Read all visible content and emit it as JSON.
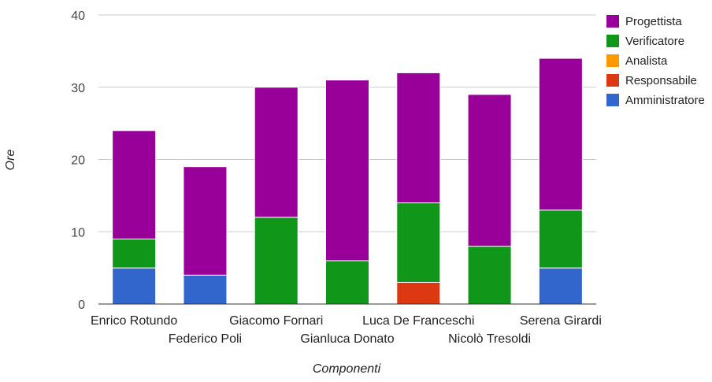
{
  "chart_data": {
    "type": "bar",
    "stacked": true,
    "title": "",
    "xlabel": "Componenti",
    "ylabel": "Ore",
    "ylim": [
      0,
      40
    ],
    "yticks": [
      0,
      10,
      20,
      30,
      40
    ],
    "grid": true,
    "legend_position": "right",
    "categories": [
      "Enrico Rotundo",
      "Federico Poli",
      "Giacomo Fornari",
      "Gianluca Donato",
      "Luca De Franceschi",
      "Nicolò Tresoldi",
      "Serena Girardi"
    ],
    "series": [
      {
        "name": "Amministratore",
        "color": "#3366cc",
        "values": [
          5,
          4,
          0,
          0,
          0,
          0,
          5
        ]
      },
      {
        "name": "Responsabile",
        "color": "#dc3912",
        "values": [
          0,
          0,
          0,
          0,
          3,
          0,
          0
        ]
      },
      {
        "name": "Analista",
        "color": "#ff9900",
        "values": [
          0,
          0,
          0,
          0,
          0,
          0,
          0
        ]
      },
      {
        "name": "Verificatore",
        "color": "#109618",
        "values": [
          4,
          0,
          12,
          6,
          11,
          8,
          8
        ]
      },
      {
        "name": "Progettista",
        "color": "#990099",
        "values": [
          15,
          15,
          18,
          25,
          18,
          21,
          21
        ]
      }
    ],
    "legend_order": [
      "Progettista",
      "Verificatore",
      "Analista",
      "Responsabile",
      "Amministratore"
    ]
  }
}
